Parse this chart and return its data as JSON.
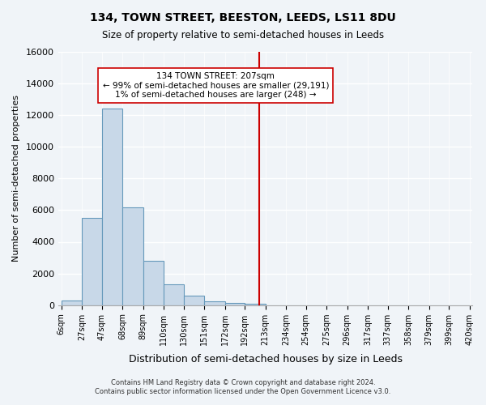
{
  "title": "134, TOWN STREET, BEESTON, LEEDS, LS11 8DU",
  "subtitle": "Size of property relative to semi-detached houses in Leeds",
  "xlabel": "Distribution of semi-detached houses by size in Leeds",
  "ylabel": "Number of semi-detached properties",
  "bar_values": [
    300,
    5500,
    12400,
    6200,
    2800,
    1300,
    600,
    250,
    150,
    100,
    0,
    0,
    0,
    0,
    0,
    0,
    0,
    0,
    0,
    0
  ],
  "bin_labels": [
    "6sqm",
    "27sqm",
    "47sqm",
    "68sqm",
    "89sqm",
    "110sqm",
    "130sqm",
    "151sqm",
    "172sqm",
    "192sqm",
    "213sqm",
    "234sqm",
    "254sqm",
    "275sqm",
    "296sqm",
    "317sqm",
    "337sqm",
    "358sqm",
    "379sqm",
    "399sqm",
    "420sqm"
  ],
  "bar_edges": [
    6,
    27,
    47,
    68,
    89,
    110,
    130,
    151,
    172,
    192,
    213,
    234,
    254,
    275,
    296,
    317,
    337,
    358,
    379,
    399,
    420
  ],
  "bar_color": "#c8d8e8",
  "bar_edge_color": "#6699bb",
  "vline_x": 207,
  "vline_color": "#cc0000",
  "annotation_title": "134 TOWN STREET: 207sqm",
  "annotation_line1": "← 99% of semi-detached houses are smaller (29,191)",
  "annotation_line2": "1% of semi-detached houses are larger (248) →",
  "ylim": [
    0,
    16000
  ],
  "yticks": [
    0,
    2000,
    4000,
    6000,
    8000,
    10000,
    12000,
    14000,
    16000
  ],
  "footnote1": "Contains HM Land Registry data © Crown copyright and database right 2024.",
  "footnote2": "Contains public sector information licensed under the Open Government Licence v3.0.",
  "background_color": "#f0f4f8"
}
